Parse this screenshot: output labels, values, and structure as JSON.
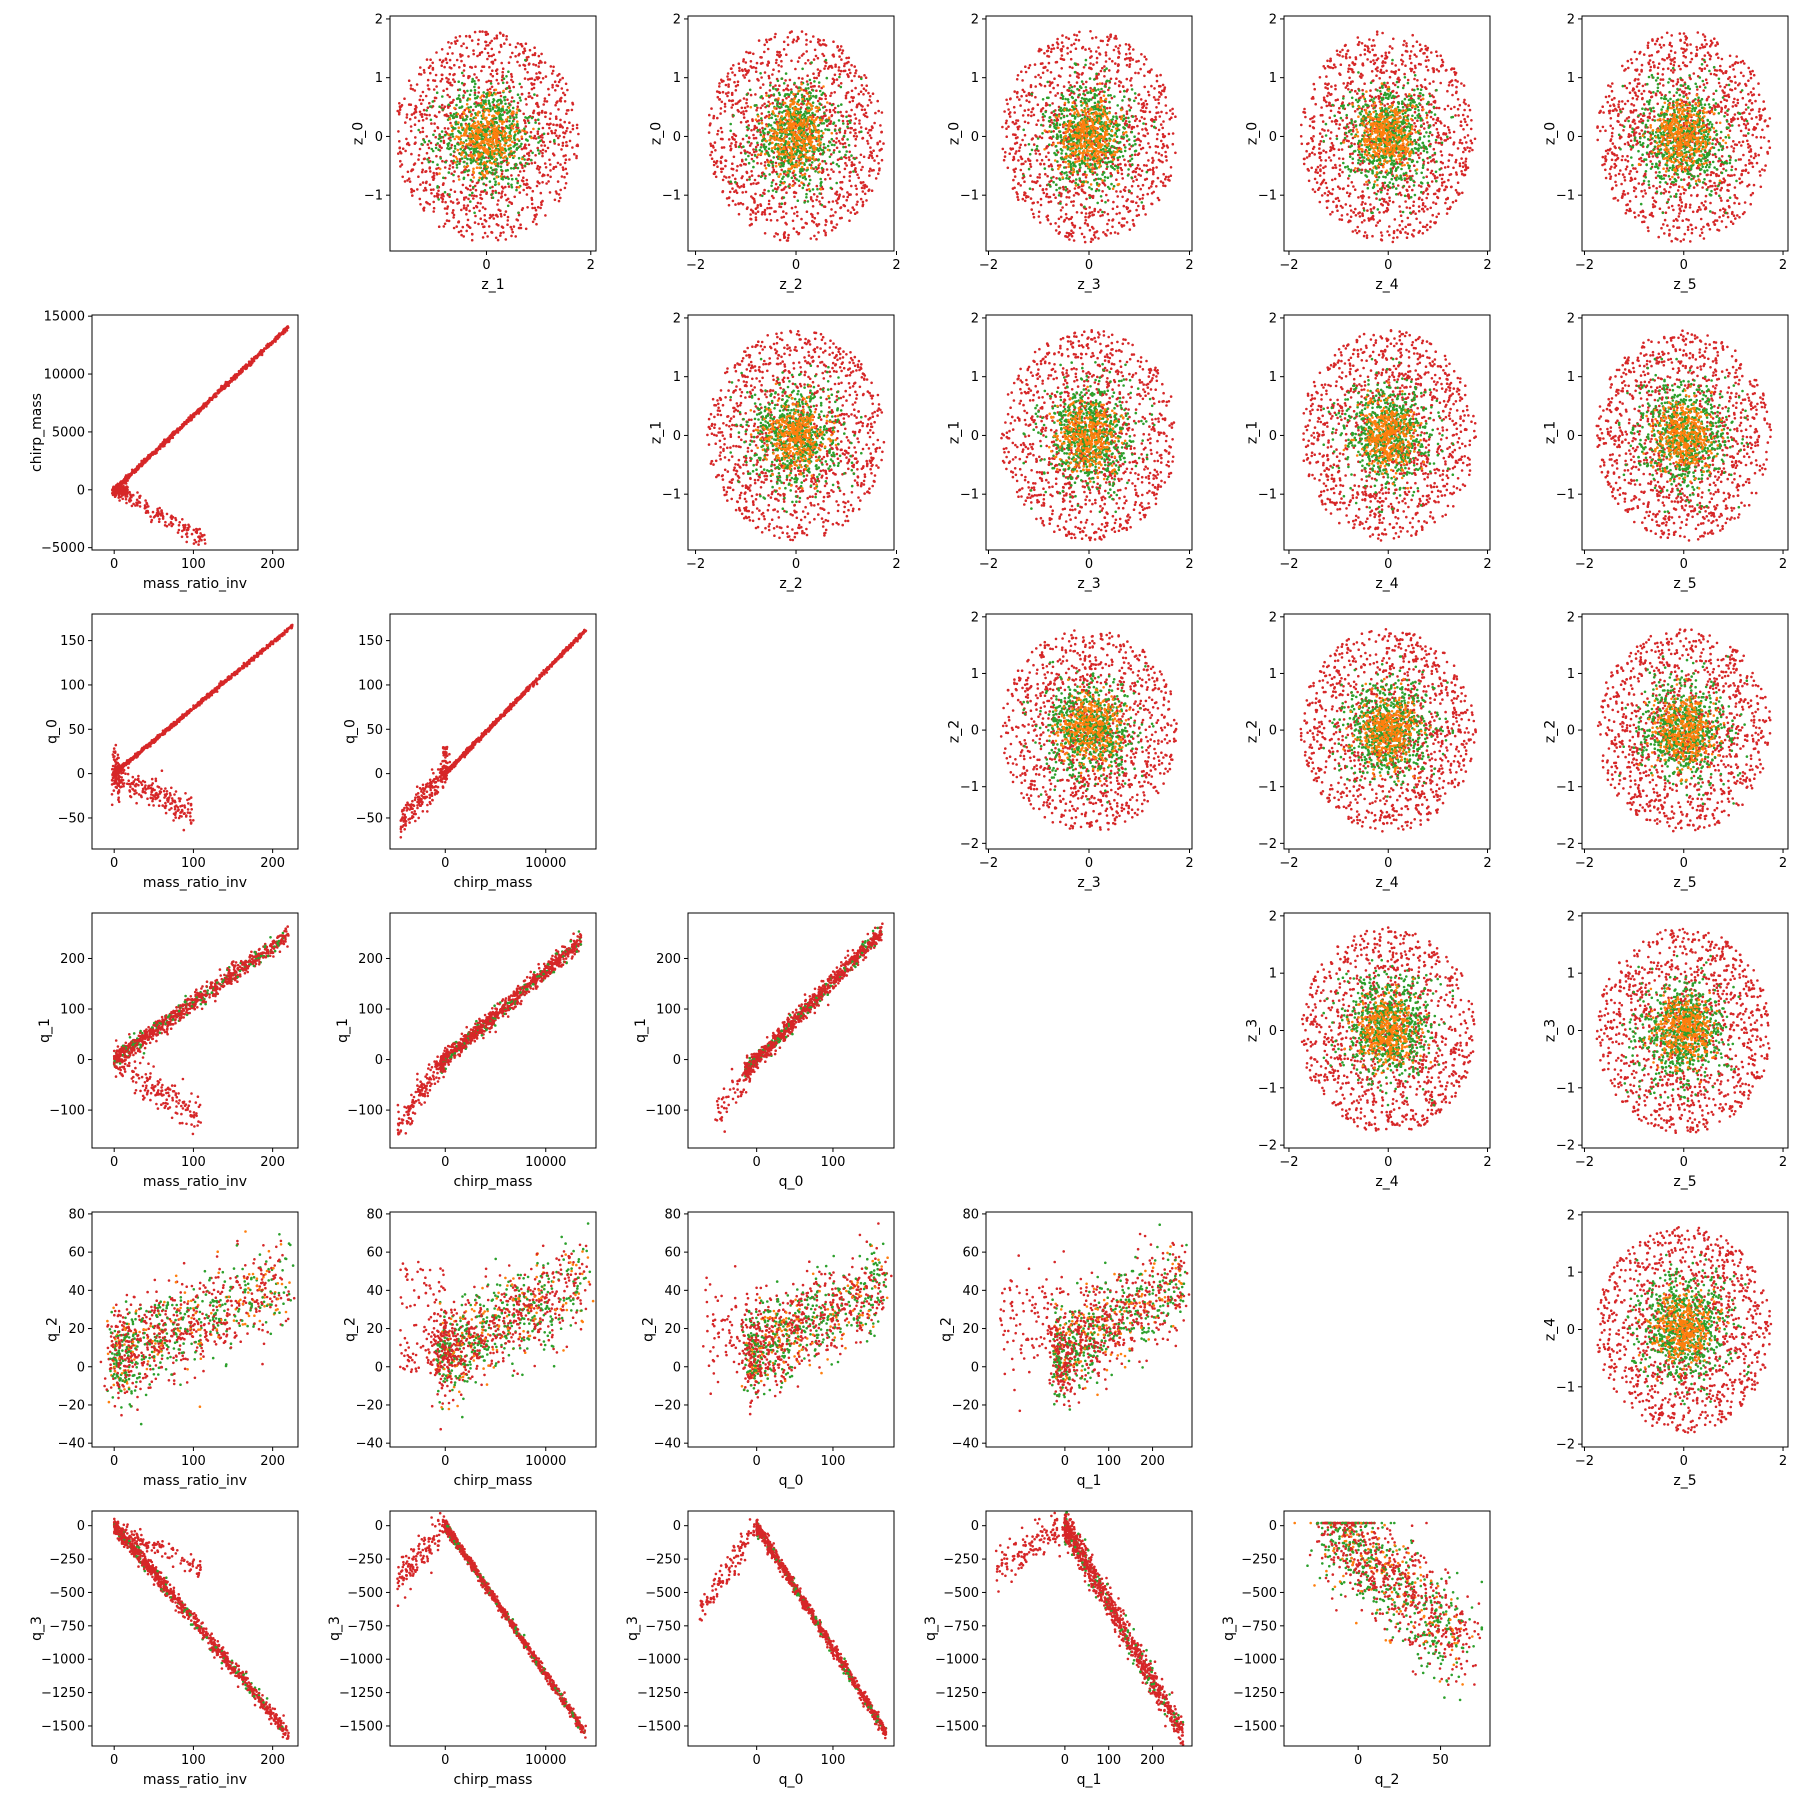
{
  "figure": {
    "title": "",
    "type": "scatter-matrix"
  },
  "colors": {
    "series_a": "#d62728",
    "series_b": "#2ca02c",
    "series_c": "#ff7f0e"
  },
  "chart_data": [
    {
      "type": "scatter",
      "row": 0,
      "col": 1,
      "xlabel": "z_1",
      "ylabel": "z_0",
      "xlim": [
        -1.85,
        2.1
      ],
      "ylim": [
        -1.95,
        2.05
      ],
      "xticks": [
        0,
        2
      ],
      "yticks": [
        -1,
        0,
        1,
        2
      ],
      "kind": "blob"
    },
    {
      "type": "scatter",
      "row": 0,
      "col": 2,
      "xlabel": "z_2",
      "ylabel": "z_0",
      "xlim": [
        -2.15,
        1.95
      ],
      "ylim": [
        -1.95,
        2.05
      ],
      "xticks": [
        -2,
        0,
        2
      ],
      "yticks": [
        -1,
        0,
        1,
        2
      ],
      "kind": "blob"
    },
    {
      "type": "scatter",
      "row": 0,
      "col": 3,
      "xlabel": "z_3",
      "ylabel": "z_0",
      "xlim": [
        -2.05,
        2.05
      ],
      "ylim": [
        -1.95,
        2.05
      ],
      "xticks": [
        -2,
        0,
        2
      ],
      "yticks": [
        -1,
        0,
        1,
        2
      ],
      "kind": "blob"
    },
    {
      "type": "scatter",
      "row": 0,
      "col": 4,
      "xlabel": "z_4",
      "ylabel": "z_0",
      "xlim": [
        -2.1,
        2.05
      ],
      "ylim": [
        -1.95,
        2.05
      ],
      "xticks": [
        -2,
        0,
        2
      ],
      "yticks": [
        -1,
        0,
        1,
        2
      ],
      "kind": "blob"
    },
    {
      "type": "scatter",
      "row": 0,
      "col": 5,
      "xlabel": "z_5",
      "ylabel": "z_0",
      "xlim": [
        -2.05,
        2.1
      ],
      "ylim": [
        -1.95,
        2.05
      ],
      "xticks": [
        -2,
        0,
        2
      ],
      "yticks": [
        -1,
        0,
        1,
        2
      ],
      "kind": "blob"
    },
    {
      "type": "scatter",
      "row": 1,
      "col": 0,
      "xlabel": "mass_ratio_inv",
      "ylabel": "chirp_mass",
      "xlim": [
        -28,
        232
      ],
      "ylim": [
        -5200,
        15100
      ],
      "xticks": [
        0,
        100,
        200
      ],
      "yticks": [
        -5000,
        0,
        5000,
        10000,
        15000
      ],
      "kind": "mrinv_chirp"
    },
    {
      "type": "scatter",
      "row": 1,
      "col": 2,
      "xlabel": "z_2",
      "ylabel": "z_1",
      "xlim": [
        -2.15,
        1.95
      ],
      "ylim": [
        -1.95,
        2.05
      ],
      "xticks": [
        -2,
        0,
        2
      ],
      "yticks": [
        -1,
        0,
        1,
        2
      ],
      "kind": "blob"
    },
    {
      "type": "scatter",
      "row": 1,
      "col": 3,
      "xlabel": "z_3",
      "ylabel": "z_1",
      "xlim": [
        -2.05,
        2.05
      ],
      "ylim": [
        -1.95,
        2.05
      ],
      "xticks": [
        -2,
        0,
        2
      ],
      "yticks": [
        -1,
        0,
        1,
        2
      ],
      "kind": "blob"
    },
    {
      "type": "scatter",
      "row": 1,
      "col": 4,
      "xlabel": "z_4",
      "ylabel": "z_1",
      "xlim": [
        -2.1,
        2.05
      ],
      "ylim": [
        -1.95,
        2.05
      ],
      "xticks": [
        -2,
        0,
        2
      ],
      "yticks": [
        -1,
        0,
        1,
        2
      ],
      "kind": "blob"
    },
    {
      "type": "scatter",
      "row": 1,
      "col": 5,
      "xlabel": "z_5",
      "ylabel": "z_1",
      "xlim": [
        -2.05,
        2.1
      ],
      "ylim": [
        -1.95,
        2.05
      ],
      "xticks": [
        -2,
        0,
        2
      ],
      "yticks": [
        -1,
        0,
        1,
        2
      ],
      "kind": "blob"
    },
    {
      "type": "scatter",
      "row": 2,
      "col": 0,
      "xlabel": "mass_ratio_inv",
      "ylabel": "q_0",
      "xlim": [
        -28,
        232
      ],
      "ylim": [
        -85,
        180
      ],
      "xticks": [
        0,
        100,
        200
      ],
      "yticks": [
        -50,
        0,
        50,
        100,
        150
      ],
      "kind": "mrinv_q0"
    },
    {
      "type": "scatter",
      "row": 2,
      "col": 1,
      "xlabel": "chirp_mass",
      "ylabel": "q_0",
      "xlim": [
        -5500,
        15000
      ],
      "ylim": [
        -85,
        180
      ],
      "xticks": [
        0,
        10000
      ],
      "yticks": [
        -50,
        0,
        50,
        100,
        150
      ],
      "kind": "chirp_q0"
    },
    {
      "type": "scatter",
      "row": 2,
      "col": 3,
      "xlabel": "z_3",
      "ylabel": "z_2",
      "xlim": [
        -2.05,
        2.05
      ],
      "ylim": [
        -2.1,
        2.05
      ],
      "xticks": [
        -2,
        0,
        2
      ],
      "yticks": [
        -2,
        -1,
        0,
        1,
        2
      ],
      "kind": "blob"
    },
    {
      "type": "scatter",
      "row": 2,
      "col": 4,
      "xlabel": "z_4",
      "ylabel": "z_2",
      "xlim": [
        -2.1,
        2.05
      ],
      "ylim": [
        -2.1,
        2.05
      ],
      "xticks": [
        -2,
        0,
        2
      ],
      "yticks": [
        -2,
        -1,
        0,
        1,
        2
      ],
      "kind": "blob"
    },
    {
      "type": "scatter",
      "row": 2,
      "col": 5,
      "xlabel": "z_5",
      "ylabel": "z_2",
      "xlim": [
        -2.05,
        2.1
      ],
      "ylim": [
        -2.1,
        2.05
      ],
      "xticks": [
        -2,
        0,
        2
      ],
      "yticks": [
        -2,
        -1,
        0,
        1,
        2
      ],
      "kind": "blob"
    },
    {
      "type": "scatter",
      "row": 3,
      "col": 0,
      "xlabel": "mass_ratio_inv",
      "ylabel": "q_1",
      "xlim": [
        -28,
        232
      ],
      "ylim": [
        -175,
        290
      ],
      "xticks": [
        0,
        100,
        200
      ],
      "yticks": [
        -100,
        0,
        100,
        200
      ],
      "kind": "mrinv_q1"
    },
    {
      "type": "scatter",
      "row": 3,
      "col": 1,
      "xlabel": "chirp_mass",
      "ylabel": "q_1",
      "xlim": [
        -5500,
        15000
      ],
      "ylim": [
        -175,
        290
      ],
      "xticks": [
        0,
        10000
      ],
      "yticks": [
        -100,
        0,
        100,
        200
      ],
      "kind": "chirp_q1"
    },
    {
      "type": "scatter",
      "row": 3,
      "col": 2,
      "xlabel": "q_0",
      "ylabel": "q_1",
      "xlim": [
        -90,
        180
      ],
      "ylim": [
        -175,
        290
      ],
      "xticks": [
        0,
        100
      ],
      "yticks": [
        -100,
        0,
        100,
        200
      ],
      "kind": "q0_q1"
    },
    {
      "type": "scatter",
      "row": 3,
      "col": 4,
      "xlabel": "z_4",
      "ylabel": "z_3",
      "xlim": [
        -2.1,
        2.05
      ],
      "ylim": [
        -2.05,
        2.05
      ],
      "xticks": [
        -2,
        0,
        2
      ],
      "yticks": [
        -2,
        -1,
        0,
        1,
        2
      ],
      "kind": "blob"
    },
    {
      "type": "scatter",
      "row": 3,
      "col": 5,
      "xlabel": "z_5",
      "ylabel": "z_3",
      "xlim": [
        -2.05,
        2.1
      ],
      "ylim": [
        -2.05,
        2.05
      ],
      "xticks": [
        -2,
        0,
        2
      ],
      "yticks": [
        -2,
        -1,
        0,
        1,
        2
      ],
      "kind": "blob"
    },
    {
      "type": "scatter",
      "row": 4,
      "col": 0,
      "xlabel": "mass_ratio_inv",
      "ylabel": "q_2",
      "xlim": [
        -28,
        232
      ],
      "ylim": [
        -42,
        81
      ],
      "xticks": [
        0,
        100,
        200
      ],
      "yticks": [
        -40,
        -20,
        0,
        20,
        40,
        60,
        80
      ],
      "kind": "mrinv_q2"
    },
    {
      "type": "scatter",
      "row": 4,
      "col": 1,
      "xlabel": "chirp_mass",
      "ylabel": "q_2",
      "xlim": [
        -5500,
        15000
      ],
      "ylim": [
        -42,
        81
      ],
      "xticks": [
        0,
        10000
      ],
      "yticks": [
        -40,
        -20,
        0,
        20,
        40,
        60,
        80
      ],
      "kind": "chirp_q2"
    },
    {
      "type": "scatter",
      "row": 4,
      "col": 2,
      "xlabel": "q_0",
      "ylabel": "q_2",
      "xlim": [
        -90,
        180
      ],
      "ylim": [
        -42,
        81
      ],
      "xticks": [
        0,
        100
      ],
      "yticks": [
        -40,
        -20,
        0,
        20,
        40,
        60,
        80
      ],
      "kind": "q0_q2"
    },
    {
      "type": "scatter",
      "row": 4,
      "col": 3,
      "xlabel": "q_1",
      "ylabel": "q_2",
      "xlim": [
        -180,
        290
      ],
      "ylim": [
        -42,
        81
      ],
      "xticks": [
        0,
        100,
        200
      ],
      "yticks": [
        -40,
        -20,
        0,
        20,
        40,
        60,
        80
      ],
      "kind": "q1_q2"
    },
    {
      "type": "scatter",
      "row": 4,
      "col": 5,
      "xlabel": "z_5",
      "ylabel": "z_4",
      "xlim": [
        -2.05,
        2.1
      ],
      "ylim": [
        -2.05,
        2.05
      ],
      "xticks": [
        -2,
        0,
        2
      ],
      "yticks": [
        -2,
        -1,
        0,
        1,
        2
      ],
      "kind": "blob"
    },
    {
      "type": "scatter",
      "row": 5,
      "col": 0,
      "xlabel": "mass_ratio_inv",
      "ylabel": "q_3",
      "xlim": [
        -28,
        232
      ],
      "ylim": [
        -1650,
        110
      ],
      "xticks": [
        0,
        100,
        200
      ],
      "yticks": [
        -1500,
        -1250,
        -1000,
        -750,
        -500,
        -250,
        0
      ],
      "kind": "mrinv_q3"
    },
    {
      "type": "scatter",
      "row": 5,
      "col": 1,
      "xlabel": "chirp_mass",
      "ylabel": "q_3",
      "xlim": [
        -5500,
        15000
      ],
      "ylim": [
        -1650,
        110
      ],
      "xticks": [
        0,
        10000
      ],
      "yticks": [
        -1500,
        -1250,
        -1000,
        -750,
        -500,
        -250,
        0
      ],
      "kind": "chirp_q3"
    },
    {
      "type": "scatter",
      "row": 5,
      "col": 2,
      "xlabel": "q_0",
      "ylabel": "q_3",
      "xlim": [
        -90,
        180
      ],
      "ylim": [
        -1650,
        110
      ],
      "xticks": [
        0,
        100
      ],
      "yticks": [
        -1500,
        -1250,
        -1000,
        -750,
        -500,
        -250,
        0
      ],
      "kind": "q0_q3"
    },
    {
      "type": "scatter",
      "row": 5,
      "col": 3,
      "xlabel": "q_1",
      "ylabel": "q_3",
      "xlim": [
        -180,
        290
      ],
      "ylim": [
        -1650,
        110
      ],
      "xticks": [
        0,
        100,
        200
      ],
      "yticks": [
        -1500,
        -1250,
        -1000,
        -750,
        -500,
        -250,
        0
      ],
      "kind": "q1_q3"
    },
    {
      "type": "scatter",
      "row": 5,
      "col": 4,
      "xlabel": "q_2",
      "ylabel": "q_3",
      "xlim": [
        -45,
        80
      ],
      "ylim": [
        -1650,
        110
      ],
      "xticks": [
        0,
        50
      ],
      "yticks": [
        -1500,
        -1250,
        -1000,
        -750,
        -500,
        -250,
        0
      ],
      "kind": "q2_q3"
    }
  ]
}
